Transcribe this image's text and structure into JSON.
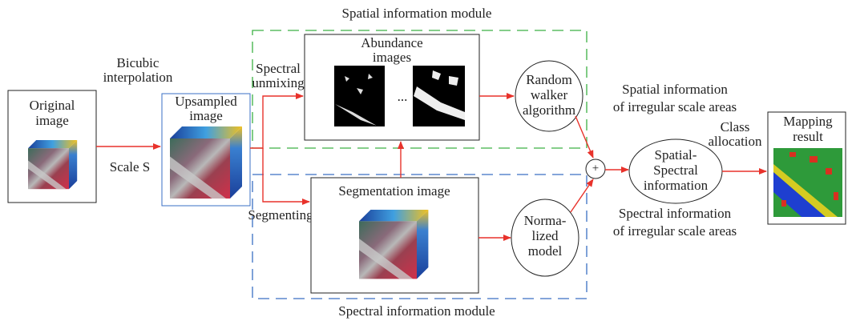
{
  "modules": {
    "spatial": "Spatial information module",
    "spectral": "Spectral information module"
  },
  "nodes": {
    "original_image": [
      "Original",
      "image"
    ],
    "upsampled_image": [
      "Upsampled",
      "image"
    ],
    "abundance_images": [
      "Abundance",
      "images"
    ],
    "abundance_separator": "...",
    "random_walker": [
      "Random",
      "walker",
      "algorithm"
    ],
    "segmentation_image": "Segmentation image",
    "normalized_model": [
      "Norma-",
      "lized",
      "model"
    ],
    "plus": "+",
    "spatial_spectral": [
      "Spatial-",
      "Spectral",
      "information"
    ],
    "mapping_result": [
      "Mapping",
      "result"
    ]
  },
  "edges": {
    "bicubic": [
      "Bicubic",
      "interpolation"
    ],
    "scale": "Scale S",
    "unmixing": [
      "Spectral",
      "unmixing"
    ],
    "segmenting": "Segmenting",
    "spatial_info": [
      "Spatial information",
      "of irregular scale areas"
    ],
    "spectral_info": [
      "Spectral information",
      "of irregular scale areas"
    ],
    "class_allocation": [
      "Class",
      "allocation"
    ]
  }
}
